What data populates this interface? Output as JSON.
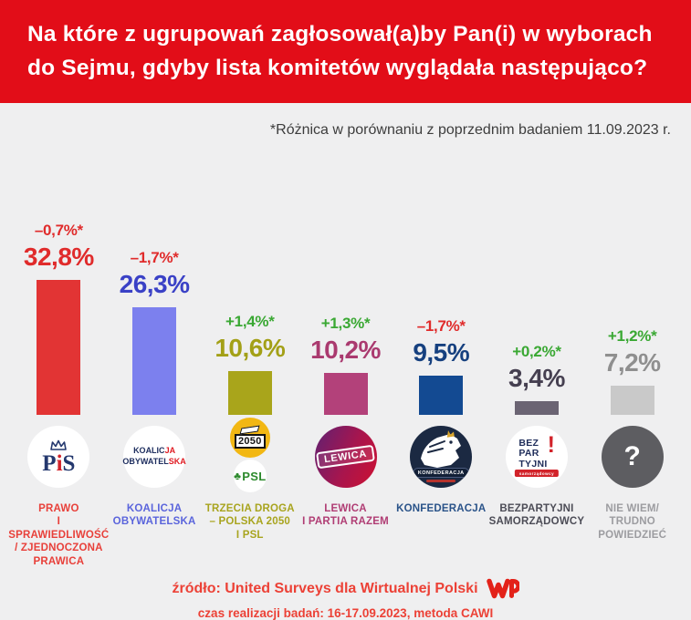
{
  "header": {
    "bg_color": "#e20d18",
    "title": "Na które z ugrupowań zagłosował(a)by Pan(i) w wyborach\ndo Sejmu, gdyby lista komitetów wyglądała następująco?"
  },
  "subtitle": "*Różnica w porównaniu z poprzednim badaniem 11.09.2023 r.",
  "chart_data": {
    "type": "bar",
    "title": "Na które z ugrupowań zagłosował(a)by Pan(i) w wyborach do Sejmu, gdyby lista komitetów wyglądała następująco?",
    "unit": "%",
    "categories": [
      "Prawo i Sprawiedliwość / Zjednoczona Prawica",
      "Koalicja Obywatelska",
      "Trzecia Droga – Polska 2050 i PSL",
      "Lewica i Partia Razem",
      "Konfederacja",
      "Bezpartyjni Samorządowcy",
      "Nie wiem / trudno powiedzieć"
    ],
    "values": [
      32.8,
      26.3,
      10.6,
      10.2,
      9.5,
      3.4,
      7.2
    ],
    "changes_vs_previous": [
      -0.7,
      -1.7,
      1.4,
      1.3,
      -1.7,
      0.2,
      1.2
    ],
    "change_reference": "poprzednie badanie 11.09.2023",
    "ylim": [
      0,
      35
    ],
    "grid": false,
    "legend": false,
    "positive_change_color": "#3aa833",
    "negative_change_color": "#e02b2b"
  },
  "parties": [
    {
      "name_label": "PRAWO\nI SPRAWIEDLIWOŚĆ\n/ ZJEDNOCZONA\nPRAWICA",
      "value": 32.8,
      "value_label": "32,8%",
      "change_label": "–0,7%*",
      "colors": {
        "bar": "#e23434",
        "value": "#e02b2b",
        "diff": "#e02b2b",
        "label": "#e8403a"
      },
      "logo": {
        "p": "P",
        "i": "i",
        "s": "S"
      }
    },
    {
      "name_label": "KOALICJA\nOBYWATELSKA",
      "value": 26.3,
      "value_label": "26,3%",
      "change_label": "–1,7%*",
      "colors": {
        "bar": "#7c80ee",
        "value": "#3a41c6",
        "diff": "#e02b2b",
        "label": "#5a64dc"
      },
      "logo": {
        "l1a": "KOALIC",
        "l1b": "JA",
        "l2a": "OBYWATEL",
        "l2b": "SKA"
      }
    },
    {
      "name_label": "TRZECIA DROGA\n– POLSKA 2050\nI PSL",
      "value": 10.6,
      "value_label": "10,6%",
      "change_label": "+1,4%*",
      "colors": {
        "bar": "#a9a51b",
        "value": "#a3a017",
        "diff": "#3aa833",
        "label": "#a8a41e"
      },
      "logo": {
        "badge": "2050",
        "psl_icon": "♣",
        "psl": "PSL"
      }
    },
    {
      "name_label": "LEWICA\nI PARTIA RAZEM",
      "value": 10.2,
      "value_label": "10,2%",
      "change_label": "+1,3%*",
      "colors": {
        "bar": "#b3417a",
        "value": "#aa3a6f",
        "diff": "#3aa833",
        "label": "#b03d74"
      },
      "logo": {
        "band": "LEWICA"
      }
    },
    {
      "name_label": "KONFEDERACJA",
      "value": 9.5,
      "value_label": "9,5%",
      "change_label": "–1,7%*",
      "colors": {
        "bar": "#134a92",
        "value": "#16407f",
        "diff": "#e02b2b",
        "label": "#2a5389"
      },
      "logo": {
        "band": "KONFEDERACJA"
      }
    },
    {
      "name_label": "BEZPARTYJNI\nSAMORZĄDOWCY",
      "value": 3.4,
      "value_label": "3,4%",
      "change_label": "+0,2%*",
      "colors": {
        "bar": "#6b6473",
        "value": "#453f50",
        "diff": "#3aa833",
        "label": "#4c4c56"
      },
      "logo": {
        "l1": "BEZ",
        "l2": "PAR",
        "l3": "TYJNI",
        "excl": "!",
        "banner": "samorządowcy"
      }
    },
    {
      "name_label": "NIE WIEM/\nTRUDNO\nPOWIEDZIEĆ",
      "value": 7.2,
      "value_label": "7,2%",
      "change_label": "+1,2%*",
      "colors": {
        "bar": "#c9c9c9",
        "value": "#8f8f8f",
        "diff": "#3aa833",
        "label": "#9c9ca0"
      },
      "logo": {
        "mark": "?"
      }
    }
  ],
  "footer": {
    "source": "źródło: United Surveys dla Wirtualnej Polski",
    "details": "czas realizacji badań: 16-17.09.2023, metoda CAWI",
    "wp_logo": "WP",
    "accent_color": "#ec4136"
  }
}
